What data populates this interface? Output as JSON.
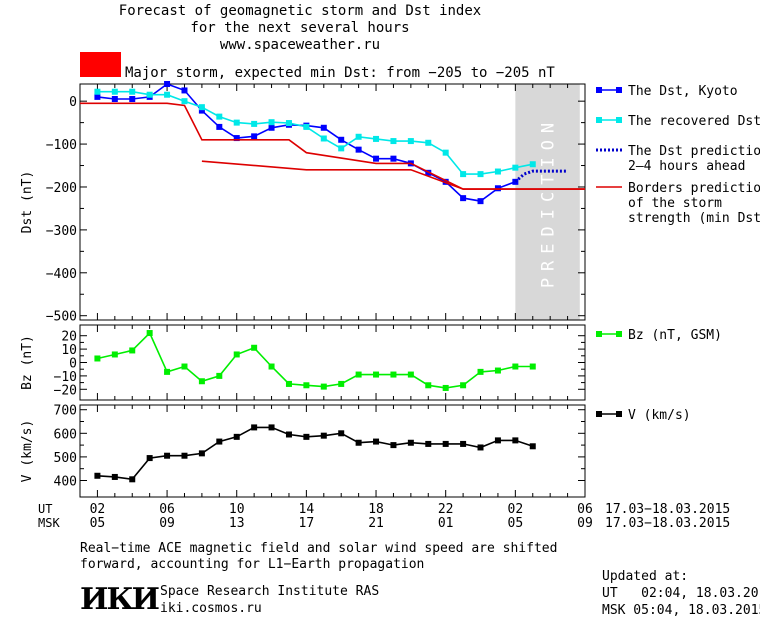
{
  "header": {
    "title_lines": [
      "Forecast of geomagnetic storm and Dst index",
      "for the next several hours",
      "www.spaceweather.ru"
    ],
    "storm_color": "#ff0000",
    "storm_text": "Major storm, expected min Dst: from −205 to −205 nT"
  },
  "chart_data": [
    {
      "type": "line",
      "ylabel": "Dst (nT)",
      "ylim": [
        -510,
        40
      ],
      "yticks": [
        0,
        -100,
        -200,
        -300,
        -400,
        -500
      ],
      "prediction_band": {
        "x_start": 26.0,
        "x_end": 29.7,
        "label": "PREDICTION",
        "color": "#d8d8d8"
      },
      "series": [
        {
          "name": "The Dst, Kyoto",
          "color": "#0000ff",
          "marker": "square",
          "x": [
            2,
            3,
            4,
            5,
            6,
            7,
            8,
            9,
            10,
            11,
            12,
            13,
            14,
            15,
            16,
            17,
            18,
            19,
            20,
            21,
            22,
            23,
            24,
            25,
            26
          ],
          "y": [
            10,
            5,
            5,
            10,
            40,
            25,
            -22,
            -60,
            -86,
            -82,
            -62,
            -55,
            -57,
            -62,
            -90,
            -113,
            -134,
            -134,
            -145,
            -167,
            -188,
            -226,
            -233,
            -203,
            -188
          ]
        },
        {
          "name": "The recovered Dst",
          "color": "#00e8e8",
          "marker": "square",
          "x": [
            2,
            3,
            4,
            5,
            6,
            7,
            8,
            9,
            10,
            11,
            12,
            13,
            14,
            15,
            16,
            17,
            18,
            19,
            20,
            21,
            22,
            23,
            24,
            25,
            26,
            27
          ],
          "y": [
            22,
            22,
            22,
            15,
            15,
            0,
            -14,
            -36,
            -50,
            -53,
            -49,
            -51,
            -60,
            -87,
            -110,
            -83,
            -88,
            -93,
            -93,
            -97,
            -120,
            -170,
            -170,
            -164,
            -155,
            -147
          ]
        },
        {
          "name": "The Dst prediction\n2–4 hours ahead",
          "color": "#0000cc",
          "dashed": true,
          "x": [
            26,
            26.5,
            27,
            28,
            29
          ],
          "y": [
            -188,
            -170,
            -163,
            -163,
            -163
          ]
        },
        {
          "name": "Borders prediction\nof the storm\nstrength (min Dst)",
          "color": "#dd0000",
          "lines": [
            {
              "x": [
                1,
                6,
                7,
                8,
                13,
                14,
                18,
                20,
                23,
                30
              ],
              "y": [
                -5,
                -5,
                -10,
                -90,
                -90,
                -120,
                -145,
                -145,
                -205,
                -205
              ]
            },
            {
              "x": [
                8,
                14,
                20,
                23,
                30
              ],
              "y": [
                -140,
                -160,
                -160,
                -205,
                -205
              ]
            }
          ]
        }
      ]
    },
    {
      "type": "line",
      "ylabel": "Bz (nT)",
      "ylim": [
        -28,
        28
      ],
      "yticks": [
        20,
        10,
        0,
        -10,
        -20
      ],
      "series": [
        {
          "name": "Bz (nT, GSM)",
          "color": "#00ee00",
          "marker": "square",
          "x": [
            2,
            3,
            4,
            5,
            6,
            7,
            8,
            9,
            10,
            11,
            12,
            13,
            14,
            15,
            16,
            17,
            18,
            19,
            20,
            21,
            22,
            23,
            24,
            25,
            26,
            27
          ],
          "y": [
            3,
            6,
            9,
            22,
            -7,
            -3,
            -14,
            -10,
            6,
            11,
            -3,
            -16,
            -17,
            -18,
            -16,
            -9,
            -9,
            -9,
            -9,
            -17,
            -19,
            -17,
            -7,
            -6,
            -3,
            -3
          ]
        }
      ]
    },
    {
      "type": "line",
      "ylabel": "V (km/s)",
      "ylim": [
        330,
        720
      ],
      "yticks": [
        700,
        600,
        500,
        400
      ],
      "series": [
        {
          "name": "V (km/s)",
          "color": "#000000",
          "marker": "square",
          "x": [
            2,
            3,
            4,
            5,
            6,
            7,
            8,
            9,
            10,
            11,
            12,
            13,
            14,
            15,
            16,
            17,
            18,
            19,
            20,
            21,
            22,
            23,
            24,
            25,
            26,
            27
          ],
          "y": [
            420,
            415,
            405,
            495,
            505,
            505,
            515,
            565,
            585,
            625,
            625,
            595,
            585,
            590,
            600,
            560,
            565,
            550,
            560,
            555,
            555,
            555,
            540,
            570,
            570,
            545
          ]
        }
      ]
    }
  ],
  "x_axis": {
    "ut_label": "UT",
    "msk_label": "MSK",
    "ut_ticks": [
      "02",
      "06",
      "10",
      "14",
      "18",
      "22",
      "02",
      "06"
    ],
    "msk_ticks": [
      "05",
      "09",
      "13",
      "17",
      "21",
      "01",
      "05",
      "09"
    ],
    "date_range": "17.03−18.03.2015"
  },
  "footer": {
    "note_lines": [
      "Real−time ACE magnetic field and solar wind speed are shifted",
      "forward, accounting for L1−Earth propagation"
    ],
    "logo_text": "ИКИ",
    "institute": "Space Research Institute RAS",
    "site": "iki.cosmos.ru",
    "updated_label": "Updated at:",
    "updated_ut": "UT   02:04, 18.03.2015",
    "updated_msk": "MSK 05:04, 18.03.2015"
  }
}
